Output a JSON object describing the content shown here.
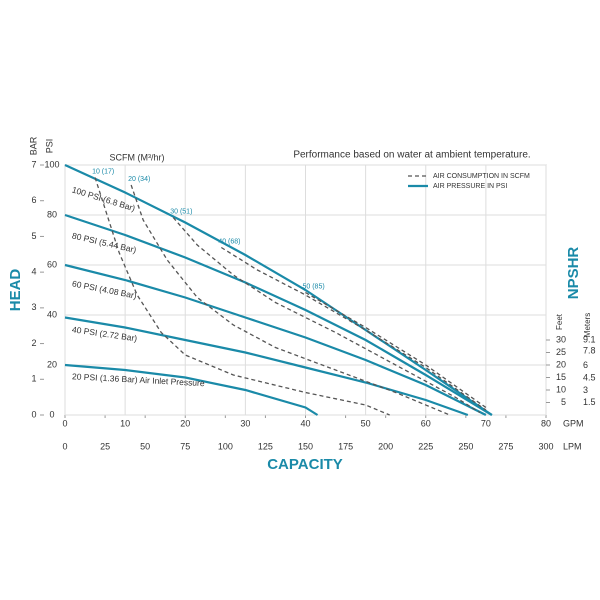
{
  "chart_data": {
    "type": "line",
    "note": "Performance based on water at ambient temperature.",
    "x_label": "CAPACITY",
    "y_label": "HEAD",
    "consumption_label": "SCFM (M³/hr)",
    "xlim": [
      0,
      80
    ],
    "xticks": [
      0,
      10,
      20,
      30,
      40,
      50,
      60,
      70,
      80
    ],
    "x_unit": "GPM",
    "x2lim": [
      0,
      300
    ],
    "x2ticks": [
      0,
      25,
      50,
      75,
      100,
      125,
      150,
      175,
      200,
      225,
      250,
      275,
      300
    ],
    "x2_unit": "LPM",
    "ylim": [
      0,
      100
    ],
    "yticks": [
      0,
      20,
      40,
      60,
      80,
      100
    ],
    "y_unit": "PSI",
    "y2lim": [
      0,
      7
    ],
    "y2ticks": [
      0,
      1,
      2,
      3,
      4,
      5,
      6,
      7
    ],
    "y2_unit": "BAR",
    "grid": true,
    "legend": [
      {
        "label": "AIR CONSUMPTION IN SCFM",
        "style": "dashed",
        "color": "#555555"
      },
      {
        "label": "AIR PRESSURE IN PSI",
        "style": "solid",
        "color": "#1a8aa8"
      }
    ],
    "npshr": {
      "title": "NPSHR",
      "feet_label": "Feet",
      "meters_label": "Meters",
      "feet_lim": [
        0,
        100
      ],
      "feet_ticks": [
        5,
        10,
        15,
        20,
        25,
        30
      ],
      "meters_lim": [
        0,
        30.48
      ],
      "meters_ticks": [
        1.5,
        3,
        4.5,
        6,
        7.8,
        9.1
      ]
    },
    "series": [
      {
        "name": "100 PSI (6.8 Bar)",
        "style": "solid",
        "color": "#1a8aa8",
        "x": [
          0,
          10,
          20,
          30,
          40,
          50,
          60,
          71
        ],
        "values": [
          100,
          89,
          77,
          64,
          50,
          34,
          18,
          0
        ]
      },
      {
        "name": "80 PSI (5.44 Bar)",
        "style": "solid",
        "color": "#1a8aa8",
        "x": [
          0,
          10,
          20,
          30,
          40,
          50,
          60,
          71
        ],
        "values": [
          80,
          72,
          63,
          53,
          42,
          30,
          16,
          0
        ]
      },
      {
        "name": "60 PSI (4.08 Bar)",
        "style": "solid",
        "color": "#1a8aa8",
        "x": [
          0,
          10,
          20,
          30,
          40,
          50,
          60,
          70
        ],
        "values": [
          60,
          54,
          47,
          39,
          31,
          22,
          12,
          0
        ]
      },
      {
        "name": "40 PSI (2.72 Bar)",
        "style": "solid",
        "color": "#1a8aa8",
        "x": [
          0,
          10,
          20,
          30,
          40,
          50,
          60,
          67
        ],
        "values": [
          39,
          35,
          30,
          25,
          19,
          13,
          6,
          0
        ]
      },
      {
        "name": "20 PSI (1.36 Bar) Air Inlet Pressure",
        "style": "solid",
        "color": "#1a8aa8",
        "x": [
          0,
          10,
          20,
          30,
          40,
          42
        ],
        "values": [
          20,
          18,
          15,
          10,
          3,
          0
        ]
      },
      {
        "name": "10 (17)",
        "style": "dashed",
        "color": "#555555",
        "x": [
          5,
          7,
          9,
          12,
          16,
          20,
          28,
          40,
          50,
          54
        ],
        "values": [
          95,
          80,
          65,
          48,
          33,
          24,
          16,
          9,
          4,
          0
        ]
      },
      {
        "name": "20 (34)",
        "style": "dashed",
        "color": "#555555",
        "x": [
          11,
          13,
          17,
          22,
          28,
          35,
          45,
          55,
          62,
          64
        ],
        "values": [
          92,
          78,
          62,
          47,
          36,
          27,
          18,
          9,
          2,
          0
        ]
      },
      {
        "name": "30 (51)",
        "style": "dashed",
        "color": "#555555",
        "x": [
          18,
          22,
          28,
          35,
          45,
          55,
          65,
          69
        ],
        "values": [
          79,
          68,
          56,
          45,
          33,
          20,
          7,
          1
        ]
      },
      {
        "name": "40 (68)",
        "style": "dashed",
        "color": "#555555",
        "x": [
          26,
          32,
          40,
          50,
          60,
          70
        ],
        "values": [
          67,
          58,
          48,
          34,
          19,
          2
        ]
      },
      {
        "name": "50 (85)",
        "style": "dashed",
        "color": "#555555",
        "x": [
          40,
          50,
          60,
          70
        ],
        "values": [
          49,
          35,
          20,
          3
        ]
      }
    ]
  }
}
